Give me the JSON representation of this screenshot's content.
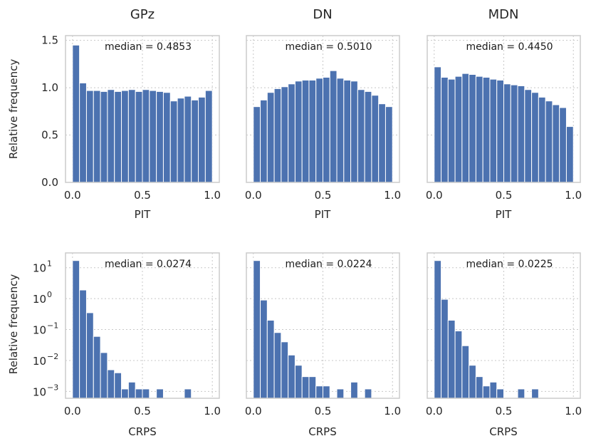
{
  "chart_data": [
    {
      "type": "bar",
      "title": "GPz",
      "xlabel": "PIT",
      "ylabel": "Relative frequency",
      "yscale": "linear",
      "xlim": [
        -0.05,
        1.05
      ],
      "ylim": [
        0,
        1.55
      ],
      "xticks": [
        0.0,
        0.5,
        1.0
      ],
      "xtick_labels": [
        "0.0",
        "0.5",
        "1.0"
      ],
      "yticks": [
        0.0,
        0.5,
        1.0,
        1.5
      ],
      "ytick_labels": [
        "0.0",
        "0.5",
        "1.0",
        "1.5"
      ],
      "bin_edges_start": 0.0,
      "bin_width": 0.05,
      "values": [
        1.45,
        1.05,
        0.97,
        0.97,
        0.96,
        0.98,
        0.96,
        0.97,
        0.98,
        0.96,
        0.98,
        0.97,
        0.96,
        0.95,
        0.86,
        0.89,
        0.91,
        0.87,
        0.9,
        0.97
      ],
      "annotation": "median = 0.4853"
    },
    {
      "type": "bar",
      "title": "DN",
      "xlabel": "PIT",
      "ylabel": "",
      "yscale": "linear",
      "xlim": [
        -0.05,
        1.05
      ],
      "ylim": [
        0,
        1.55
      ],
      "xticks": [
        0.0,
        0.5,
        1.0
      ],
      "xtick_labels": [
        "0.0",
        "0.5",
        "1.0"
      ],
      "yticks": [
        0.0,
        0.5,
        1.0,
        1.5
      ],
      "ytick_labels": [],
      "bin_edges_start": 0.0,
      "bin_width": 0.05,
      "values": [
        0.8,
        0.87,
        0.95,
        0.99,
        1.01,
        1.04,
        1.07,
        1.08,
        1.08,
        1.1,
        1.11,
        1.18,
        1.1,
        1.08,
        1.07,
        0.98,
        0.96,
        0.92,
        0.83,
        0.8
      ],
      "annotation": "median = 0.5010"
    },
    {
      "type": "bar",
      "title": "MDN",
      "xlabel": "PIT",
      "ylabel": "",
      "yscale": "linear",
      "xlim": [
        -0.05,
        1.05
      ],
      "ylim": [
        0,
        1.55
      ],
      "xticks": [
        0.0,
        0.5,
        1.0
      ],
      "xtick_labels": [
        "0.0",
        "0.5",
        "1.0"
      ],
      "yticks": [
        0.0,
        0.5,
        1.0,
        1.5
      ],
      "ytick_labels": [],
      "bin_edges_start": 0.0,
      "bin_width": 0.05,
      "values": [
        1.22,
        1.11,
        1.09,
        1.12,
        1.15,
        1.14,
        1.12,
        1.11,
        1.09,
        1.08,
        1.04,
        1.03,
        1.02,
        0.98,
        0.95,
        0.9,
        0.86,
        0.82,
        0.79,
        0.59
      ],
      "annotation": "median = 0.4450"
    },
    {
      "type": "bar",
      "title": "",
      "xlabel": "CRPS",
      "ylabel": "Relative frequency",
      "yscale": "log",
      "xlim": [
        -0.05,
        1.05
      ],
      "ylim": [
        0.0006,
        30
      ],
      "xticks": [
        0.0,
        0.5,
        1.0
      ],
      "xtick_labels": [
        "0.0",
        "0.5",
        "1.0"
      ],
      "yticks": [
        0.001,
        0.01,
        0.1,
        1,
        10
      ],
      "ytick_bases": [
        "10",
        "10",
        "10",
        "10",
        "10"
      ],
      "ytick_exps": [
        "−3",
        "−2",
        "−1",
        "0",
        "1"
      ],
      "bin_edges_start": 0.0,
      "bin_width": 0.05,
      "values": [
        17,
        1.9,
        0.35,
        0.06,
        0.018,
        0.005,
        0.004,
        0.0012,
        0.002,
        0.0012,
        0.0012,
        0.0,
        0.0012,
        0.0,
        0.0,
        0.0,
        0.0012,
        0.0,
        0.0,
        0.0
      ],
      "annotation": "median = 0.0274"
    },
    {
      "type": "bar",
      "title": "",
      "xlabel": "CRPS",
      "ylabel": "",
      "yscale": "log",
      "xlim": [
        -0.05,
        1.05
      ],
      "ylim": [
        0.0006,
        30
      ],
      "xticks": [
        0.0,
        0.5,
        1.0
      ],
      "xtick_labels": [
        "0.0",
        "0.5",
        "1.0"
      ],
      "yticks": [
        0.001,
        0.01,
        0.1,
        1,
        10
      ],
      "ytick_bases": [],
      "ytick_exps": [],
      "bin_edges_start": 0.0,
      "bin_width": 0.05,
      "values": [
        17,
        0.9,
        0.2,
        0.08,
        0.04,
        0.015,
        0.007,
        0.003,
        0.003,
        0.0015,
        0.0015,
        0.0,
        0.0012,
        0.0,
        0.002,
        0.0,
        0.0012,
        0.0,
        0.0,
        0.0
      ],
      "annotation": "median = 0.0224"
    },
    {
      "type": "bar",
      "title": "",
      "xlabel": "CRPS",
      "ylabel": "",
      "yscale": "log",
      "xlim": [
        -0.05,
        1.05
      ],
      "ylim": [
        0.0006,
        30
      ],
      "xticks": [
        0.0,
        0.5,
        1.0
      ],
      "xtick_labels": [
        "0.0",
        "0.5",
        "1.0"
      ],
      "yticks": [
        0.001,
        0.01,
        0.1,
        1,
        10
      ],
      "ytick_bases": [],
      "ytick_exps": [],
      "bin_edges_start": 0.0,
      "bin_width": 0.05,
      "values": [
        17,
        0.95,
        0.2,
        0.09,
        0.03,
        0.007,
        0.003,
        0.0015,
        0.002,
        0.0012,
        0.0,
        0.0,
        0.0012,
        0.0,
        0.0012,
        0.0,
        0.0,
        0.0,
        0.0,
        0.0
      ],
      "annotation": "median = 0.0225"
    }
  ]
}
